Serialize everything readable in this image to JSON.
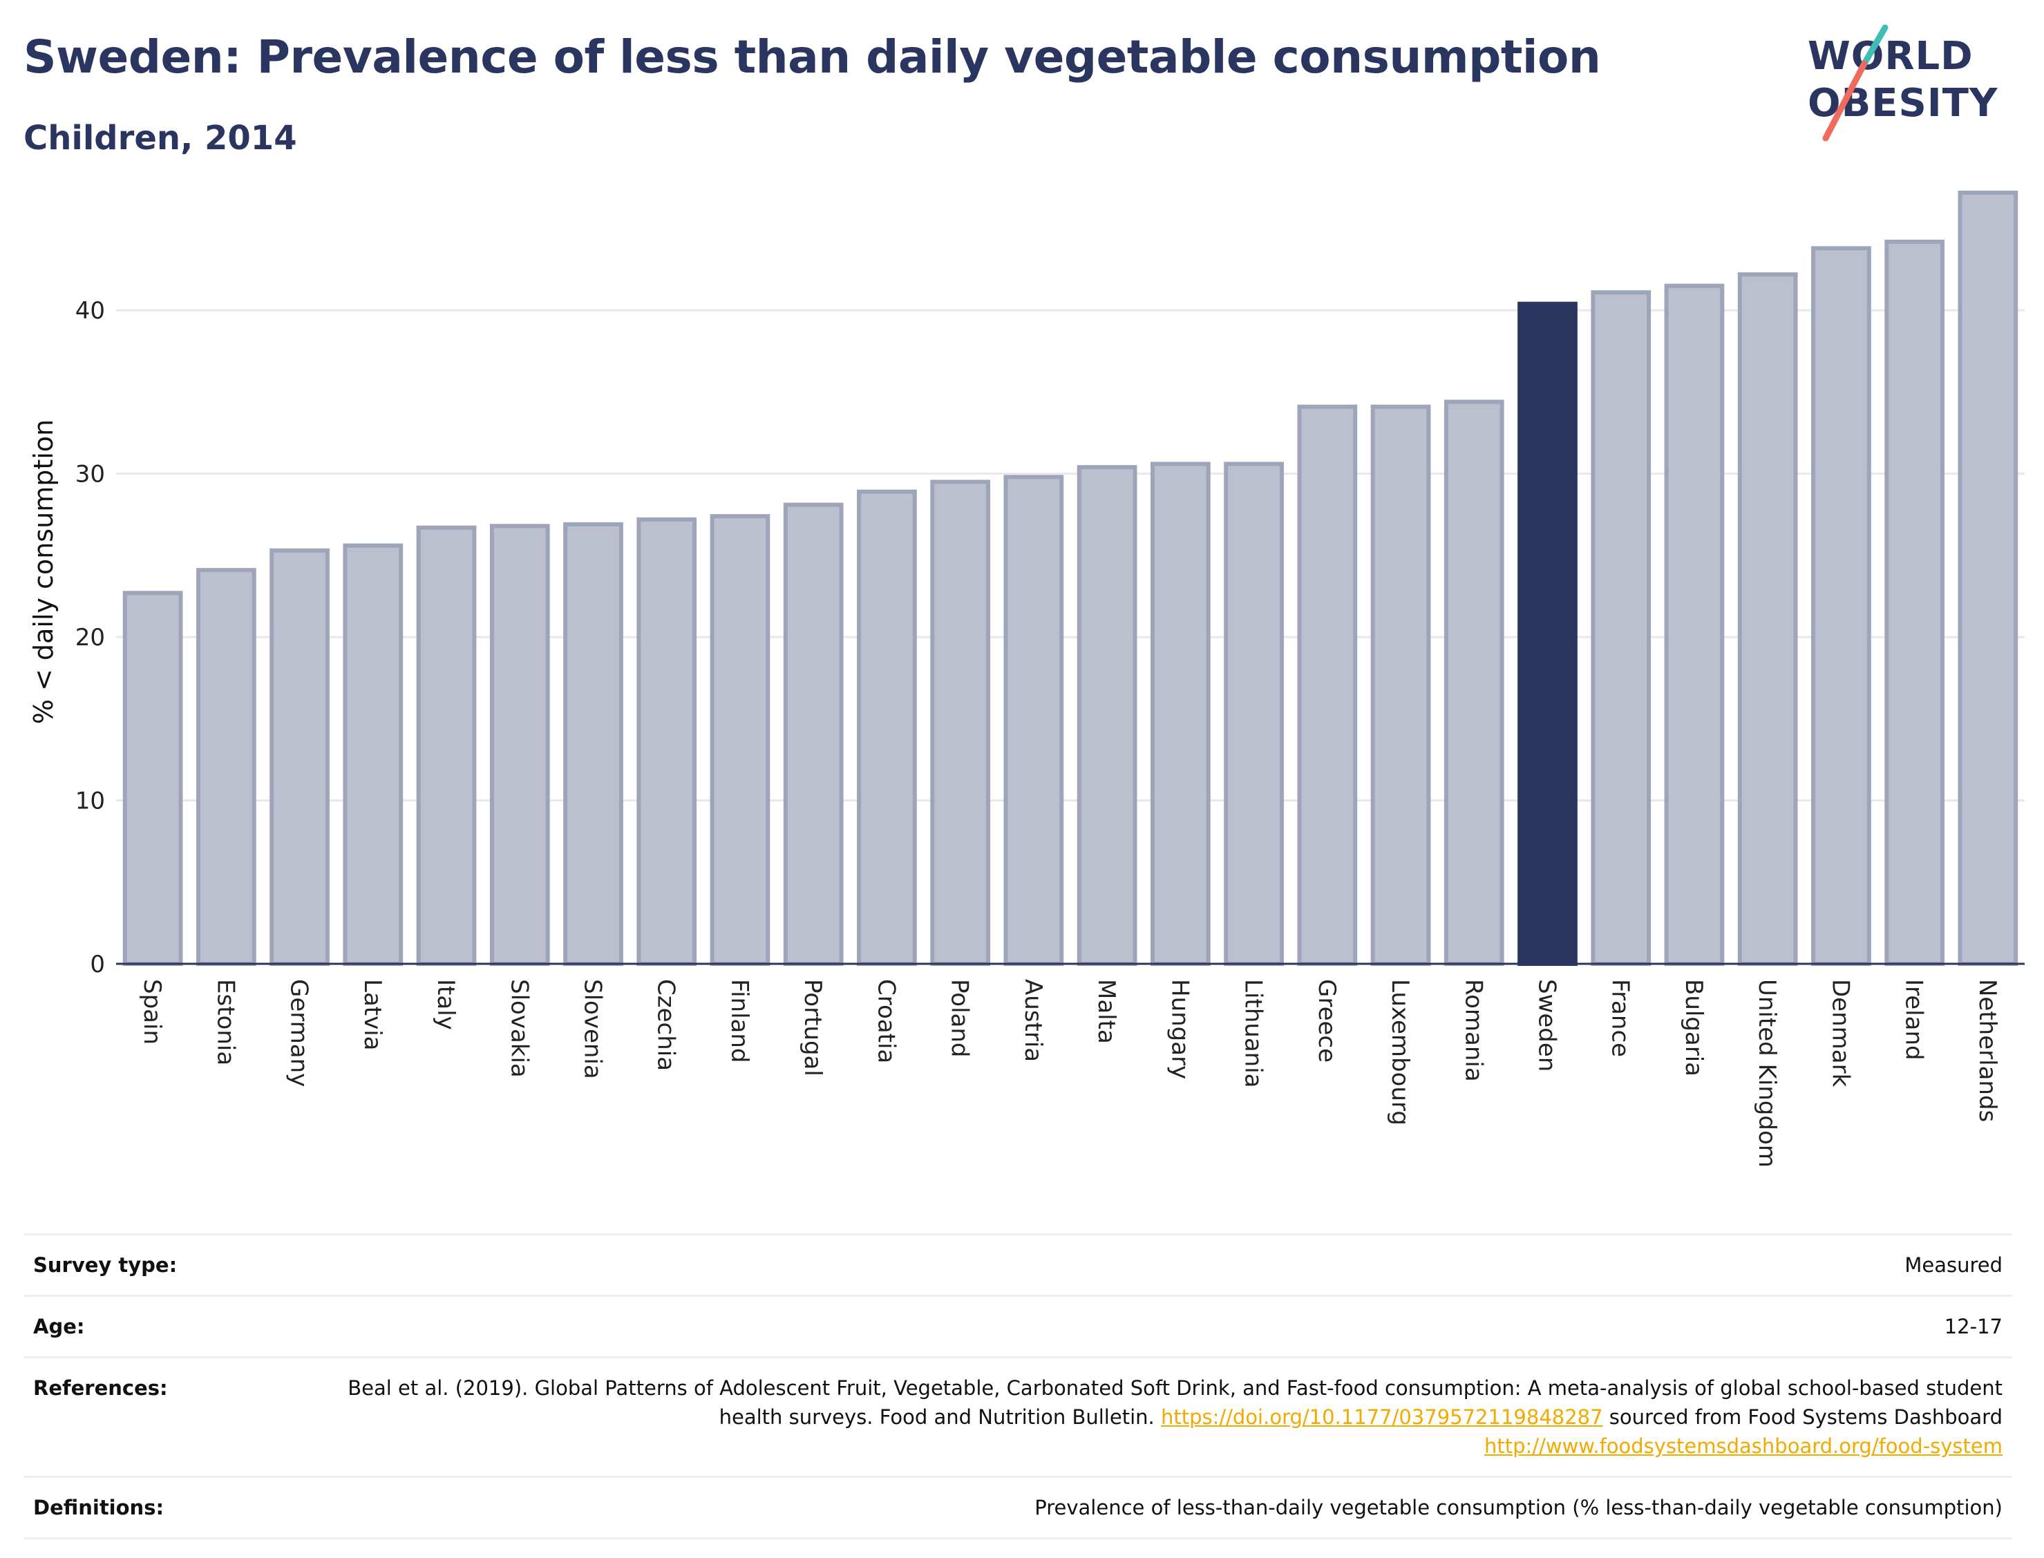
{
  "header": {
    "title": "Sweden: Prevalence of less than daily vegetable consumption",
    "subtitle": "Children, 2014"
  },
  "logo": {
    "line1": "WORLD",
    "line2": "OBESITY"
  },
  "colors": {
    "bar_default": "#bcc0ce",
    "bar_border": "#9ea4b9",
    "bar_highlight": "#2a3560",
    "grid": "#e6e8ee",
    "axis": "#2a3560",
    "title": "#2a3560",
    "link": "#f2a900",
    "logo_teal": "#3dbdb6",
    "logo_coral": "#ef6b5e"
  },
  "chart_data": {
    "type": "bar",
    "ylabel": "% < daily consumption",
    "xlabel": "",
    "ylim": [
      0,
      48
    ],
    "yticks": [
      0,
      10,
      20,
      30,
      40
    ],
    "grid": true,
    "highlight": "Sweden",
    "categories": [
      "Spain",
      "Estonia",
      "Germany",
      "Latvia",
      "Italy",
      "Slovakia",
      "Slovenia",
      "Czechia",
      "Finland",
      "Portugal",
      "Croatia",
      "Poland",
      "Austria",
      "Malta",
      "Hungary",
      "Lithuania",
      "Greece",
      "Luxembourg",
      "Romania",
      "Sweden",
      "France",
      "Bulgaria",
      "United Kingdom",
      "Denmark",
      "Ireland",
      "Netherlands"
    ],
    "values": [
      22.7,
      24.1,
      25.3,
      25.6,
      26.7,
      26.8,
      26.9,
      27.2,
      27.4,
      28.1,
      28.9,
      29.5,
      29.8,
      30.4,
      30.6,
      30.6,
      34.1,
      34.1,
      34.4,
      40.4,
      41.1,
      41.5,
      42.2,
      43.8,
      44.2,
      47.2
    ]
  },
  "info": {
    "survey_type_label": "Survey type:",
    "survey_type_value": "Measured",
    "age_label": "Age:",
    "age_value": "12-17",
    "references_label": "References:",
    "references_text_1": "Beal et al. (2019). Global Patterns of Adolescent Fruit, Vegetable, Carbonated Soft Drink, and Fast-food consumption: A meta-analysis of global school-based student health surveys. Food and Nutrition Bulletin. ",
    "references_link_1": "https://doi.org/10.1177/0379572119848287",
    "references_text_2": " sourced from Food Systems Dashboard ",
    "references_link_2": "http://www.foodsystemsdashboard.org/food-system",
    "definitions_label": "Definitions:",
    "definitions_value": "Prevalence of less-than-daily vegetable consumption (% less-than-daily vegetable consumption)"
  }
}
